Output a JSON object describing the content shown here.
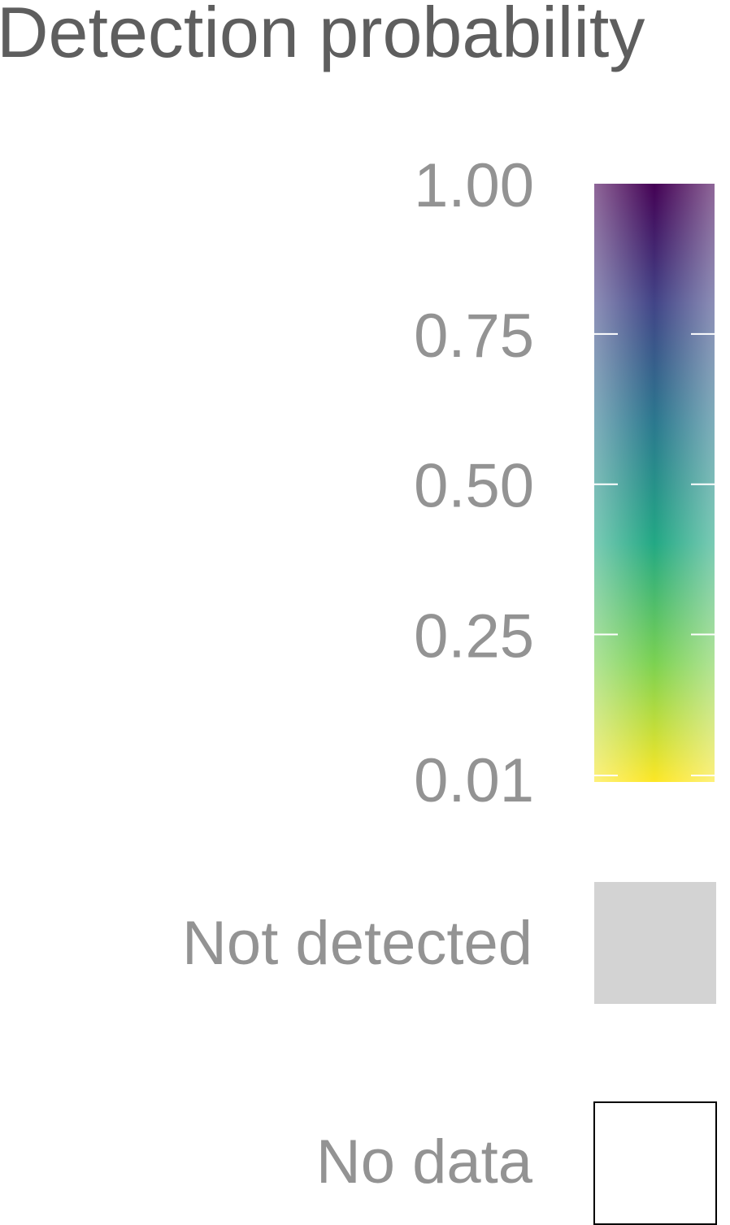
{
  "chart_data": {
    "type": "legend",
    "title": "Detection probability",
    "colorbar": {
      "range": [
        0.01,
        1.0
      ],
      "ticks": [
        {
          "value": 1.0,
          "label": "1.00"
        },
        {
          "value": 0.75,
          "label": "0.75"
        },
        {
          "value": 0.5,
          "label": "0.50"
        },
        {
          "value": 0.25,
          "label": "0.25"
        },
        {
          "value": 0.01,
          "label": "0.01"
        }
      ],
      "palette": "viridis",
      "colors_low_to_high": [
        "#fde725",
        "#7ad151",
        "#22a884",
        "#2a788e",
        "#414487",
        "#440154"
      ],
      "tick_mark_color": "#ffffff"
    },
    "keys": [
      {
        "label": "Not detected",
        "fill": "#d3d3d3",
        "stroke": "none"
      },
      {
        "label": "No data",
        "fill": "#ffffff",
        "stroke": "#000000"
      }
    ]
  }
}
